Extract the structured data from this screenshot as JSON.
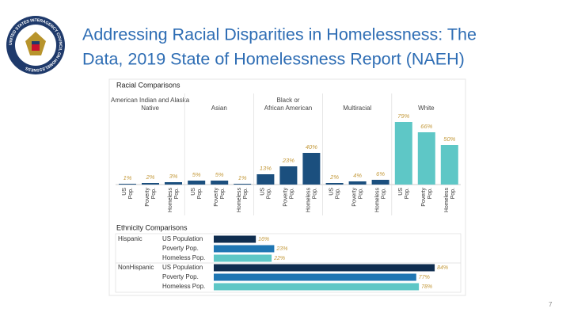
{
  "header": {
    "title_lines": [
      "Addressing Racial Disparities in Homelessness: The",
      "Data, 2019 State of Homelessness Report (NAEH)"
    ],
    "seal_text": "UNITED STATES INTERAGENCY COUNCIL ON HOMELESSNESS"
  },
  "page_number": "7",
  "chart_data": [
    {
      "type": "bar",
      "title": "Racial Comparisons",
      "categories": [
        "US Pop.",
        "Poverty Pop.",
        "Homeless Pop."
      ],
      "ylim": [
        0,
        90
      ],
      "label_color": "#c49a3c",
      "groups": [
        {
          "name": "American Indian and Alaska Native",
          "color": "#1b4f7e",
          "values": [
            1,
            2,
            3
          ],
          "value_labels": [
            "1%",
            "2%",
            "3%"
          ]
        },
        {
          "name": "Asian",
          "color": "#1b4f7e",
          "values": [
            5,
            5,
            1
          ],
          "value_labels": [
            "5%",
            "5%",
            "1%"
          ]
        },
        {
          "name": "Black or African American",
          "color": "#1b4f7e",
          "values": [
            13,
            23,
            40
          ],
          "value_labels": [
            "13%",
            "23%",
            "40%"
          ]
        },
        {
          "name": "Multiracial",
          "color": "#1b4f7e",
          "values": [
            2,
            4,
            6
          ],
          "value_labels": [
            "2%",
            "4%",
            "6%"
          ]
        },
        {
          "name": "White",
          "color": "#5ec7c6",
          "values": [
            79,
            66,
            50
          ],
          "value_labels": [
            "79%",
            "66%",
            "50%"
          ]
        }
      ]
    },
    {
      "type": "hbar",
      "title": "Ethnicity Comparisons",
      "categories": [
        "US Population",
        "Poverty Pop.",
        "Homeless Pop."
      ],
      "colors": [
        "#0f2d4f",
        "#1f76b3",
        "#5ec7c6"
      ],
      "xlim": [
        0,
        90
      ],
      "label_color": "#c49a3c",
      "groups": [
        {
          "name": "Hispanic",
          "values": [
            16,
            23,
            22
          ],
          "value_labels": [
            "16%",
            "23%",
            "22%"
          ]
        },
        {
          "name": "NonHispanic",
          "values": [
            84,
            77,
            78
          ],
          "value_labels": [
            "84%",
            "77%",
            "78%"
          ]
        }
      ]
    }
  ]
}
